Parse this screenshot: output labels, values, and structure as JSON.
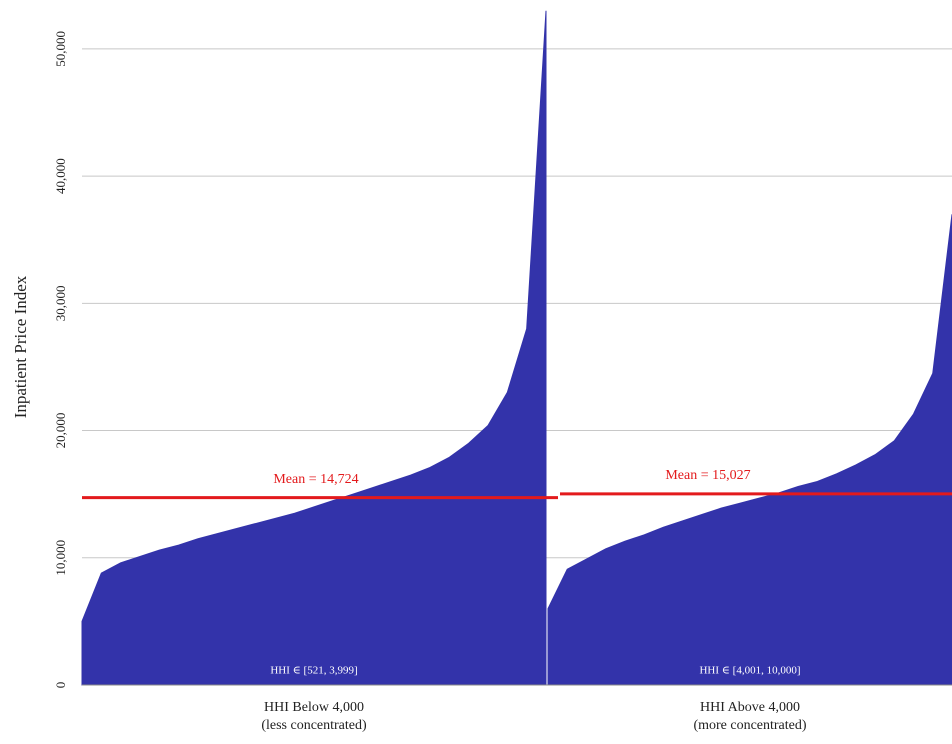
{
  "chart_data": {
    "type": "area",
    "y_label": "Inpatient Price Index",
    "ylim": [
      0,
      54000
    ],
    "yticks": [
      0,
      {
        "value": 10000,
        "label": "10,000"
      },
      {
        "value": 20000,
        "label": "20,000"
      },
      {
        "value": 30000,
        "label": "30,000"
      },
      {
        "value": 40000,
        "label": "40,000"
      },
      {
        "value": 50000,
        "label": "50,000"
      }
    ],
    "grid": true,
    "color": "#3333aa",
    "mean_color": "#e31a1c",
    "panels": [
      {
        "category": [
          "HHI Below 4,000",
          "(less concentrated)"
        ],
        "range_label": "HHI ∈ [521, 3,999]",
        "mean": 14724,
        "mean_label": "Mean = 14,724",
        "values": [
          5000,
          8800,
          9600,
          10100,
          10600,
          11000,
          11500,
          11900,
          12300,
          12700,
          13100,
          13500,
          14000,
          14500,
          15000,
          15500,
          16000,
          16500,
          17100,
          17900,
          19000,
          20400,
          23000,
          28000,
          53000
        ]
      },
      {
        "category": [
          "HHI Above 4,000",
          "(more concentrated)"
        ],
        "range_label": "HHI ∈ [4,001, 10,000]",
        "mean": 15027,
        "mean_label": "Mean = 15,027",
        "values": [
          6000,
          9100,
          9900,
          10700,
          11300,
          11800,
          12400,
          12900,
          13400,
          13900,
          14300,
          14700,
          15100,
          15600,
          16000,
          16600,
          17300,
          18100,
          19200,
          21300,
          24500,
          37000
        ]
      }
    ]
  }
}
